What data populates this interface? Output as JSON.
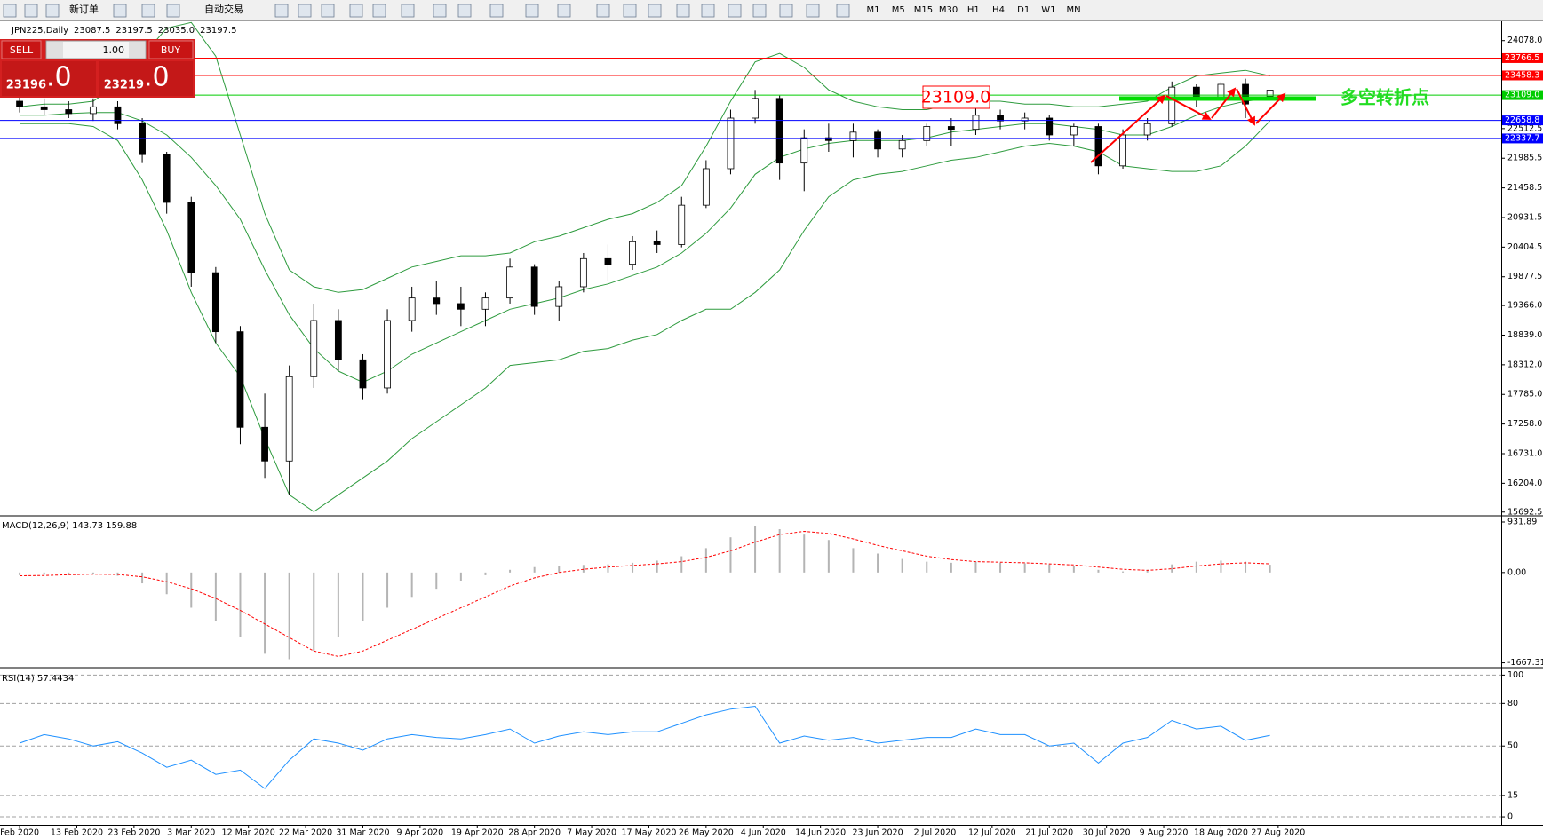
{
  "toolbar": {
    "buttons": [
      "新订单",
      "自动交易"
    ],
    "timeframes": [
      "M1",
      "M5",
      "M15",
      "M30",
      "H1",
      "H4",
      "D1",
      "W1",
      "MN"
    ]
  },
  "trade_panel": {
    "sell_label": "SELL",
    "buy_label": "BUY",
    "lot": "1.00",
    "sell_price": "23196",
    "sell_price_big": ".0",
    "buy_price": "23219",
    "buy_price_big": ".0"
  },
  "chart_data": [
    {
      "type": "candlestick",
      "title": "JPN225,Daily",
      "header_values": [
        "23087.5",
        "23197.5",
        "23035.0",
        "23197.5"
      ],
      "x": [
        0,
        3,
        6,
        9,
        12,
        15,
        18,
        21,
        24,
        27,
        30,
        33,
        36,
        39,
        42,
        45,
        48,
        51,
        54,
        57,
        60,
        63,
        66,
        69,
        72,
        75,
        78,
        81,
        84,
        87,
        90,
        93,
        96,
        99,
        102,
        105,
        108,
        111,
        114,
        117,
        120,
        123,
        126,
        129,
        132,
        135,
        138,
        141,
        144,
        147,
        150,
        153
      ],
      "open": [
        23000,
        22900,
        22850,
        22780,
        22900,
        22600,
        22050,
        21200,
        19950,
        18900,
        17200,
        16600,
        18100,
        19100,
        18400,
        17900,
        19100,
        19500,
        19400,
        19300,
        19500,
        20050,
        19350,
        19700,
        20200,
        20100,
        20500,
        20450,
        21150,
        21800,
        22700,
        23050,
        21900,
        22350,
        22300,
        22450,
        22150,
        22300,
        22550,
        22500,
        22750,
        22650,
        22700,
        22400,
        22550,
        21850,
        22400,
        22600,
        23250,
        23050,
        23300,
        23087.5
      ],
      "high": [
        23150,
        23050,
        23000,
        23050,
        23000,
        22700,
        22100,
        21300,
        20050,
        19000,
        17800,
        18300,
        19400,
        19300,
        18500,
        19300,
        19700,
        19800,
        19700,
        19600,
        20200,
        20100,
        19800,
        20300,
        20450,
        20600,
        20700,
        21300,
        21950,
        22850,
        23200,
        23100,
        22500,
        22600,
        22600,
        22500,
        22400,
        22600,
        22700,
        22900,
        22850,
        22800,
        22750,
        22600,
        22600,
        22500,
        22700,
        23350,
        23300,
        23350,
        23400,
        23197.5
      ],
      "low": [
        22800,
        22750,
        22700,
        22650,
        22500,
        21900,
        21000,
        19700,
        18700,
        16900,
        16300,
        16000,
        17900,
        18200,
        17700,
        17800,
        18900,
        19200,
        19000,
        19000,
        19400,
        19200,
        19100,
        19600,
        19800,
        20000,
        20300,
        20400,
        21100,
        21700,
        22600,
        21600,
        21400,
        22100,
        22000,
        22000,
        22000,
        22200,
        22200,
        22400,
        22500,
        22500,
        22300,
        22200,
        21700,
        21800,
        22300,
        22550,
        22900,
        22950,
        22700,
        23035
      ],
      "close": [
        22900,
        22850,
        22780,
        22900,
        22600,
        22050,
        21200,
        19950,
        18900,
        17200,
        16600,
        18100,
        19100,
        18400,
        17900,
        19100,
        19500,
        19400,
        19300,
        19500,
        20050,
        19350,
        19700,
        20200,
        20100,
        20500,
        20450,
        21150,
        21800,
        22700,
        23050,
        21900,
        22350,
        22300,
        22450,
        22150,
        22300,
        22550,
        22500,
        22750,
        22650,
        22700,
        22400,
        22550,
        21850,
        22400,
        22600,
        23250,
        23050,
        23300,
        22950,
        23197.5
      ],
      "up_color": "#ffffff",
      "down_color": "#000000",
      "series": [
        {
          "color": "#2e9b3e",
          "values": [
            22900,
            22950,
            22950,
            23000,
            23300,
            23800,
            24300,
            24400,
            23800,
            22400,
            21000,
            20000,
            19700,
            19600,
            19650,
            19850,
            20050,
            20150,
            20250,
            20250,
            20300,
            20500,
            20600,
            20750,
            20900,
            21000,
            21200,
            21500,
            22200,
            23000,
            23700,
            23850,
            23600,
            23200,
            23000,
            22900,
            22850,
            22850,
            22950,
            23000,
            23000,
            22950,
            22950,
            22900,
            22900,
            22950,
            23000,
            23250,
            23450,
            23500,
            23550,
            23450
          ]
        },
        {
          "color": "#2e9b3e",
          "values": [
            22750,
            22750,
            22780,
            22800,
            22800,
            22650,
            22400,
            22000,
            21500,
            20900,
            20000,
            19200,
            18600,
            18200,
            18000,
            18200,
            18500,
            18700,
            18900,
            19100,
            19300,
            19400,
            19500,
            19650,
            19750,
            19900,
            20050,
            20300,
            20650,
            21100,
            21700,
            22000,
            22150,
            22250,
            22300,
            22300,
            22300,
            22350,
            22450,
            22500,
            22550,
            22600,
            22600,
            22550,
            22500,
            22400,
            22400,
            22550,
            22750,
            22900,
            23000,
            23050
          ]
        },
        {
          "color": "#2e9b3e",
          "values": [
            22600,
            22600,
            22600,
            22550,
            22300,
            21600,
            20700,
            19600,
            18700,
            18100,
            17000,
            16000,
            15700,
            16000,
            16300,
            16600,
            17000,
            17300,
            17600,
            17900,
            18300,
            18350,
            18400,
            18550,
            18600,
            18750,
            18850,
            19100,
            19300,
            19300,
            19600,
            20000,
            20700,
            21300,
            21600,
            21700,
            21750,
            21850,
            21950,
            22000,
            22100,
            22200,
            22250,
            22200,
            22100,
            21850,
            21800,
            21750,
            21750,
            21850,
            22200,
            22650
          ]
        }
      ],
      "hlines": [
        {
          "value": 23766.5,
          "label": "23766.5",
          "color": "#ff0000"
        },
        {
          "value": 23458.3,
          "label": "23458.3",
          "color": "#ff0000"
        },
        {
          "value": 23109,
          "label": "23109.0",
          "color": "#00cc00"
        },
        {
          "value": 22658.8,
          "label": "22658.8",
          "color": "#0000ff"
        },
        {
          "value": 22337.7,
          "label": "22337.7",
          "color": "#0000ff"
        }
      ],
      "annotations": [
        {
          "text": "23109.0",
          "color": "#ff0000"
        },
        {
          "text": "多空转折点",
          "color": "#22dd22"
        }
      ],
      "xlim": [
        -2.4,
        181.3
      ],
      "ylim": [
        15657,
        24421
      ],
      "xticks": [
        {
          "value": 0,
          "label": "Feb 2020"
        },
        {
          "value": 7,
          "label": "13 Feb 2020"
        },
        {
          "value": 14,
          "label": "23 Feb 2020"
        },
        {
          "value": 21,
          "label": "3 Mar 2020"
        },
        {
          "value": 28,
          "label": "12 Mar 2020"
        },
        {
          "value": 35,
          "label": "22 Mar 2020"
        },
        {
          "value": 42,
          "label": "31 Mar 2020"
        },
        {
          "value": 49,
          "label": "9 Apr 2020"
        },
        {
          "value": 56,
          "label": "19 Apr 2020"
        },
        {
          "value": 63,
          "label": "28 Apr 2020"
        },
        {
          "value": 70,
          "label": "7 May 2020"
        },
        {
          "value": 77,
          "label": "17 May 2020"
        },
        {
          "value": 84,
          "label": "26 May 2020"
        },
        {
          "value": 91,
          "label": "4 Jun 2020"
        },
        {
          "value": 98,
          "label": "14 Jun 2020"
        },
        {
          "value": 105,
          "label": "23 Jun 2020"
        },
        {
          "value": 112,
          "label": "2 Jul 2020"
        },
        {
          "value": 119,
          "label": "12 Jul 2020"
        },
        {
          "value": 126,
          "label": "21 Jul 2020"
        },
        {
          "value": 133,
          "label": "30 Jul 2020"
        },
        {
          "value": 140,
          "label": "9 Aug 2020"
        },
        {
          "value": 147,
          "label": "18 Aug 2020"
        },
        {
          "value": 154,
          "label": "27 Aug 2020"
        }
      ],
      "yticks": [
        {
          "value": 24078,
          "label": "24078.0"
        },
        22512.5,
        21985.5,
        21458.5,
        20931.5,
        20404.5,
        19877.5,
        {
          "value": 19366,
          "label": "19366.0"
        },
        {
          "value": 18839,
          "label": "18839.0"
        },
        {
          "value": 18312,
          "label": "18312.0"
        },
        {
          "value": 17785,
          "label": "17785.0"
        },
        {
          "value": 17258,
          "label": "17258.0"
        },
        {
          "value": 16731,
          "label": "16731.0"
        },
        {
          "value": 16204,
          "label": "16204.0"
        },
        15692.5
      ]
    },
    {
      "type": "macd",
      "title": "MACD(12,26,9) 143.73 159.88",
      "x": [
        0,
        3,
        6,
        9,
        12,
        15,
        18,
        21,
        24,
        27,
        30,
        33,
        36,
        39,
        42,
        45,
        48,
        51,
        54,
        57,
        60,
        63,
        66,
        69,
        72,
        75,
        78,
        81,
        84,
        87,
        90,
        93,
        96,
        99,
        102,
        105,
        108,
        111,
        114,
        117,
        120,
        123,
        126,
        129,
        132,
        135,
        138,
        141,
        144,
        147,
        150,
        153
      ],
      "histogram": {
        "color": "#b4b4b4",
        "values": [
          -50,
          -40,
          -30,
          -20,
          -60,
          -200,
          -400,
          -650,
          -900,
          -1200,
          -1500,
          -1600,
          -1450,
          -1200,
          -900,
          -650,
          -450,
          -300,
          -150,
          -50,
          50,
          100,
          120,
          140,
          150,
          180,
          220,
          300,
          450,
          650,
          860,
          800,
          700,
          600,
          450,
          350,
          250,
          200,
          180,
          200,
          180,
          170,
          150,
          120,
          50,
          20,
          50,
          150,
          200,
          220,
          200,
          143.73
        ]
      },
      "signal": {
        "color": "#ff0000",
        "values": [
          -60,
          -55,
          -40,
          -30,
          -35,
          -80,
          -170,
          -300,
          -480,
          -700,
          -950,
          -1200,
          -1450,
          -1550,
          -1450,
          -1250,
          -1050,
          -850,
          -650,
          -450,
          -250,
          -100,
          0,
          60,
          100,
          130,
          160,
          200,
          280,
          400,
          560,
          700,
          760,
          720,
          620,
          500,
          400,
          300,
          240,
          200,
          190,
          180,
          160,
          140,
          100,
          60,
          40,
          70,
          120,
          160,
          180,
          159.88
        ]
      },
      "ylim": [
        -1740,
        1030
      ],
      "yticks": [
        931.89,
        {
          "value": 0,
          "label": "0.00"
        },
        -1667.31
      ]
    },
    {
      "type": "line",
      "title": "RSI(14) 57.4434",
      "x": [
        0,
        3,
        6,
        9,
        12,
        15,
        18,
        21,
        24,
        27,
        30,
        33,
        36,
        39,
        42,
        45,
        48,
        51,
        54,
        57,
        60,
        63,
        66,
        69,
        72,
        75,
        78,
        81,
        84,
        87,
        90,
        93,
        96,
        99,
        102,
        105,
        108,
        111,
        114,
        117,
        120,
        123,
        126,
        129,
        132,
        135,
        138,
        141,
        144,
        147,
        150,
        153
      ],
      "values": [
        52,
        58,
        55,
        50,
        53,
        45,
        35,
        40,
        30,
        33,
        20,
        40,
        55,
        52,
        47,
        55,
        58,
        56,
        55,
        58,
        62,
        52,
        57,
        60,
        58,
        60,
        60,
        66,
        72,
        76,
        78,
        52,
        57,
        54,
        56,
        52,
        54,
        56,
        56,
        62,
        58,
        58,
        50,
        52,
        38,
        52,
        56,
        68,
        62,
        64,
        54,
        57.4434
      ],
      "color": "#1e90ff",
      "ylim": [
        -5.6,
        104
      ],
      "yticks": [
        100,
        80,
        50,
        15,
        0
      ],
      "grid": true
    }
  ]
}
